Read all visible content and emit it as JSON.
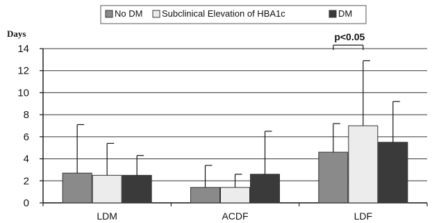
{
  "chart_data": {
    "type": "bar",
    "title": "",
    "xlabel": "",
    "ylabel": "Days",
    "ylim": [
      0,
      14
    ],
    "yticks": [
      "0",
      "2",
      "4",
      "6",
      "8",
      "10",
      "12",
      "14"
    ],
    "grid": true,
    "legend_position": "top-center",
    "categories": [
      "LDM",
      "ACDF",
      "LDF"
    ],
    "series": [
      {
        "name": "No DM",
        "color": "#8a8a8a",
        "values": [
          2.7,
          1.4,
          4.6
        ],
        "error_upper": [
          7.1,
          3.4,
          7.2
        ]
      },
      {
        "name": "Subclinical Elevation of HBA1c",
        "color": "#ececec",
        "values": [
          2.5,
          1.4,
          7.0
        ],
        "error_upper": [
          5.4,
          2.6,
          12.9
        ]
      },
      {
        "name": "DM",
        "color": "#3a3a3a",
        "values": [
          2.5,
          2.6,
          5.5
        ],
        "error_upper": [
          4.3,
          6.5,
          9.2
        ]
      }
    ],
    "annotations": [
      {
        "text": "p<0.05",
        "category": "LDF"
      }
    ]
  }
}
